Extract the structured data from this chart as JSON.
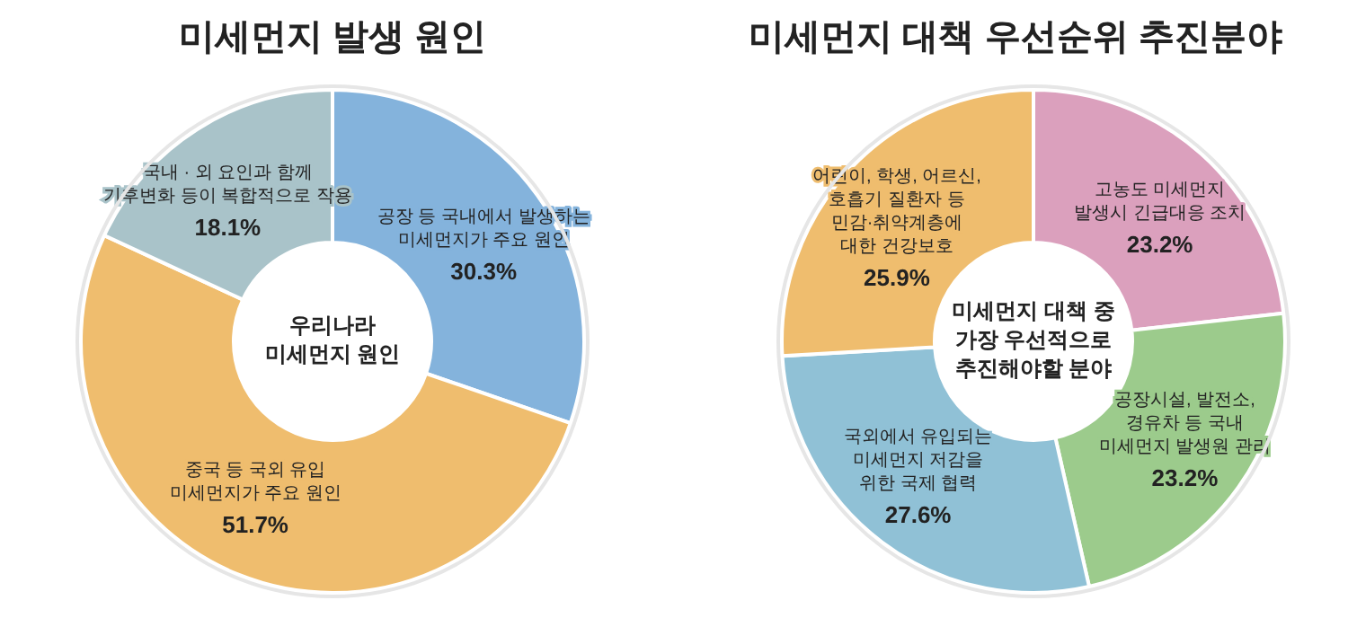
{
  "chart_data": [
    {
      "type": "donut",
      "title": "미세먼지 발생 원인",
      "annotations": [
        "우리나라\n미세먼지 원인"
      ],
      "categories": [
        "공장 등 국내에서 발생하는\n미세먼지가 주요 원인",
        "중국 등 국외 유입\n미세먼지가 주요 원인",
        "국내 · 외 요인과 함께\n기후변화 등이 복합적으로 작용"
      ],
      "values": [
        30.3,
        51.7,
        18.1
      ],
      "value_labels": [
        "30.3%",
        "51.7%",
        "18.1%"
      ],
      "colors": [
        "#84b3dc",
        "#efbd6e",
        "#a9c3c9"
      ]
    },
    {
      "type": "donut",
      "title": "미세먼지 대책 우선순위 추진분야",
      "annotations": [
        "미세먼지 대책 중\n가장 우선적으로\n추진해야할 분야"
      ],
      "categories": [
        "고농도 미세먼지\n발생시 긴급대응 조치",
        "공장시설, 발전소,\n경유차 등 국내\n미세먼지 발생원 관리",
        "국외에서 유입되는\n미세먼지 저감을\n위한 국제 협력",
        "어린이, 학생, 어르신,\n호흡기 질환자 등\n민감·취약계층에\n대한 건강보호"
      ],
      "values": [
        23.2,
        23.2,
        27.6,
        25.9
      ],
      "value_labels": [
        "23.2%",
        "23.2%",
        "27.6%",
        "25.9%"
      ],
      "colors": [
        "#dba0bd",
        "#9ccb8c",
        "#90c1d6",
        "#efbd6e"
      ]
    }
  ]
}
